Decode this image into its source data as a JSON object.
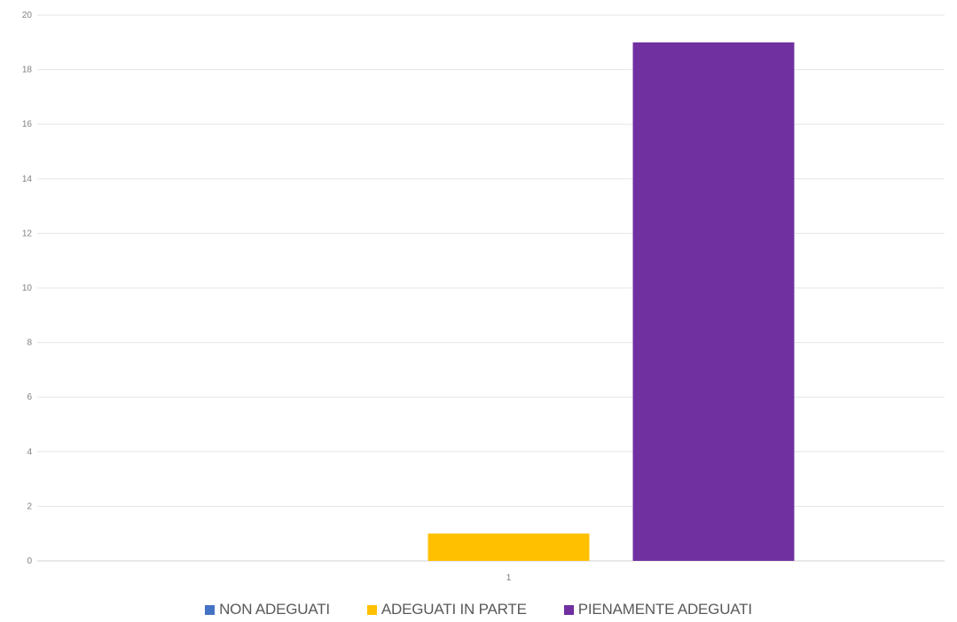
{
  "chart_data": {
    "type": "bar",
    "categories": [
      "1"
    ],
    "series": [
      {
        "name": "NON ADEGUATI",
        "values": [
          0
        ],
        "color": "#4472C4"
      },
      {
        "name": "ADEGUATI IN PARTE",
        "values": [
          1
        ],
        "color": "#FFC000"
      },
      {
        "name": "PIENAMENTE ADEGUATI",
        "values": [
          19
        ],
        "color": "#7030A0"
      }
    ],
    "ylim": [
      0,
      20
    ],
    "yticks": [
      "0",
      "2",
      "4",
      "6",
      "8",
      "10",
      "12",
      "14",
      "16",
      "18",
      "20"
    ],
    "grid": true,
    "legend_position": "bottom",
    "title": "",
    "xlabel": "",
    "ylabel": ""
  }
}
